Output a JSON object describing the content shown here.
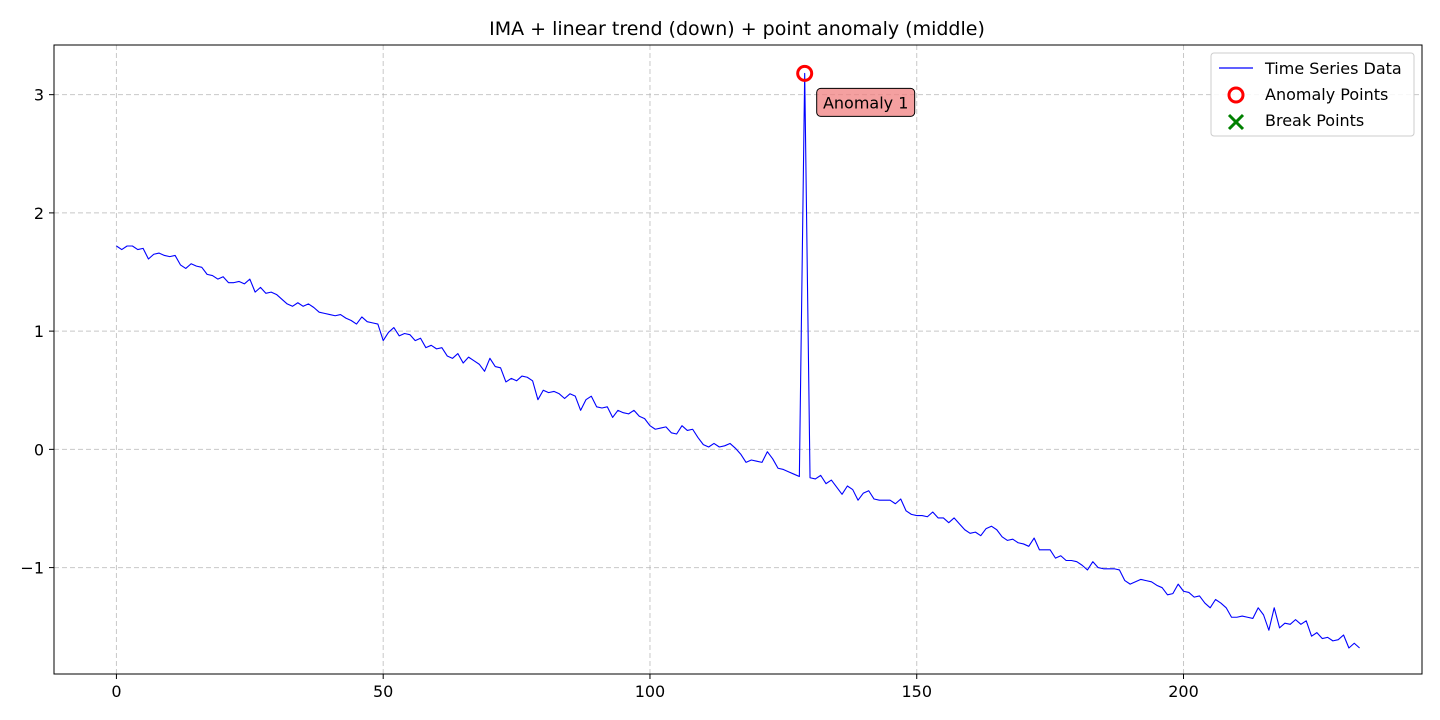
{
  "chart_data": {
    "type": "line",
    "title": "IMA + linear trend (down) + point anomaly (middle)",
    "xlabel": "",
    "ylabel": "",
    "xlim": [
      -11.7,
      244.7
    ],
    "ylim": [
      -1.9,
      3.42
    ],
    "xticks": [
      0,
      50,
      100,
      150,
      200
    ],
    "yticks": [
      -1,
      0,
      1,
      2,
      3
    ],
    "xtick_labels": [
      "0",
      "50",
      "100",
      "150",
      "200"
    ],
    "ytick_labels": [
      "−1",
      "0",
      "1",
      "2",
      "3"
    ],
    "grid": true,
    "legend_position": "top-right",
    "legend": [
      {
        "label": "Time Series Data",
        "marker": "line",
        "color": "#0000ff"
      },
      {
        "label": "Anomaly Points",
        "marker": "circle",
        "color": "#ff0000"
      },
      {
        "label": "Break Points",
        "marker": "x",
        "color": "#008000"
      }
    ],
    "series": [
      {
        "name": "Time Series Data",
        "color": "#0000ff",
        "x_start": 0,
        "x_step": 1,
        "values": [
          1.72,
          1.69,
          1.72,
          1.72,
          1.69,
          1.7,
          1.61,
          1.65,
          1.66,
          1.64,
          1.63,
          1.64,
          1.56,
          1.53,
          1.57,
          1.55,
          1.54,
          1.48,
          1.47,
          1.44,
          1.46,
          1.41,
          1.41,
          1.42,
          1.4,
          1.44,
          1.33,
          1.37,
          1.32,
          1.33,
          1.31,
          1.27,
          1.23,
          1.21,
          1.24,
          1.21,
          1.23,
          1.2,
          1.16,
          1.15,
          1.14,
          1.13,
          1.14,
          1.11,
          1.09,
          1.06,
          1.12,
          1.08,
          1.07,
          1.06,
          0.92,
          0.99,
          1.03,
          0.96,
          0.98,
          0.97,
          0.92,
          0.94,
          0.86,
          0.88,
          0.85,
          0.86,
          0.79,
          0.77,
          0.81,
          0.73,
          0.78,
          0.75,
          0.72,
          0.66,
          0.77,
          0.7,
          0.69,
          0.57,
          0.6,
          0.58,
          0.62,
          0.61,
          0.58,
          0.42,
          0.5,
          0.48,
          0.49,
          0.47,
          0.43,
          0.47,
          0.45,
          0.33,
          0.42,
          0.45,
          0.36,
          0.35,
          0.36,
          0.27,
          0.33,
          0.31,
          0.3,
          0.33,
          0.28,
          0.26,
          0.2,
          0.17,
          0.18,
          0.19,
          0.14,
          0.13,
          0.2,
          0.16,
          0.17,
          0.1,
          0.04,
          0.02,
          0.05,
          0.02,
          0.03,
          0.05,
          0.01,
          -0.04,
          -0.11,
          -0.09,
          -0.1,
          -0.11,
          -0.02,
          -0.08,
          -0.16,
          -0.17,
          -0.19,
          -0.21,
          -0.23,
          3.18,
          -0.24,
          -0.25,
          -0.22,
          -0.29,
          -0.26,
          -0.32,
          -0.38,
          -0.31,
          -0.34,
          -0.43,
          -0.37,
          -0.35,
          -0.42,
          -0.43,
          -0.43,
          -0.43,
          -0.46,
          -0.42,
          -0.52,
          -0.55,
          -0.56,
          -0.56,
          -0.57,
          -0.53,
          -0.58,
          -0.58,
          -0.62,
          -0.58,
          -0.63,
          -0.68,
          -0.71,
          -0.7,
          -0.73,
          -0.67,
          -0.65,
          -0.68,
          -0.74,
          -0.77,
          -0.76,
          -0.79,
          -0.8,
          -0.82,
          -0.75,
          -0.85,
          -0.85,
          -0.85,
          -0.92,
          -0.9,
          -0.94,
          -0.94,
          -0.95,
          -0.98,
          -1.02,
          -0.95,
          -1.0,
          -1.01,
          -1.01,
          -1.01,
          -1.02,
          -1.11,
          -1.14,
          -1.12,
          -1.1,
          -1.11,
          -1.12,
          -1.15,
          -1.17,
          -1.23,
          -1.22,
          -1.14,
          -1.2,
          -1.21,
          -1.25,
          -1.24,
          -1.3,
          -1.34,
          -1.27,
          -1.3,
          -1.34,
          -1.42,
          -1.42,
          -1.41,
          -1.42,
          -1.43,
          -1.34,
          -1.4,
          -1.53,
          -1.34,
          -1.51,
          -1.47,
          -1.48,
          -1.44,
          -1.48,
          -1.45,
          -1.58,
          -1.55,
          -1.6,
          -1.59,
          -1.62,
          -1.61,
          -1.57,
          -1.68,
          -1.64,
          -1.68
        ]
      }
    ],
    "anomaly_points": [
      {
        "x": 129,
        "y": 3.18,
        "label": "Anomaly 1"
      }
    ],
    "break_points": []
  }
}
